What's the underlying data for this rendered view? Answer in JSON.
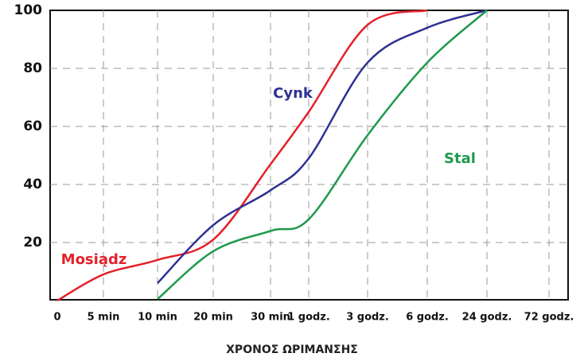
{
  "chart_data": {
    "type": "line",
    "x_label": "ΧΡΟΝΟΣ ΩΡΙΜΑΝΣΗΣ",
    "categories": [
      "0",
      "5 min",
      "10 min",
      "20 min",
      "30 min",
      "1 godz.",
      "3 godz.",
      "6 godz.",
      "24 godz.",
      "72 godz."
    ],
    "series": [
      {
        "name": "Mosiądz",
        "color": "#e3222b",
        "values": [
          0,
          9,
          14,
          21,
          47,
          65,
          95,
          100,
          null,
          null
        ]
      },
      {
        "name": "Cynk",
        "color": "#2e3192",
        "values": [
          null,
          null,
          6,
          26,
          38,
          49,
          82,
          94,
          100,
          null
        ]
      },
      {
        "name": "Stal",
        "color": "#1f9a4b",
        "values": [
          null,
          null,
          0.5,
          17,
          24,
          28,
          57,
          82,
          100,
          null
        ]
      }
    ],
    "ylim": [
      0,
      100
    ],
    "yticks": [
      20,
      40,
      60,
      80,
      100
    ],
    "grid": true
  }
}
